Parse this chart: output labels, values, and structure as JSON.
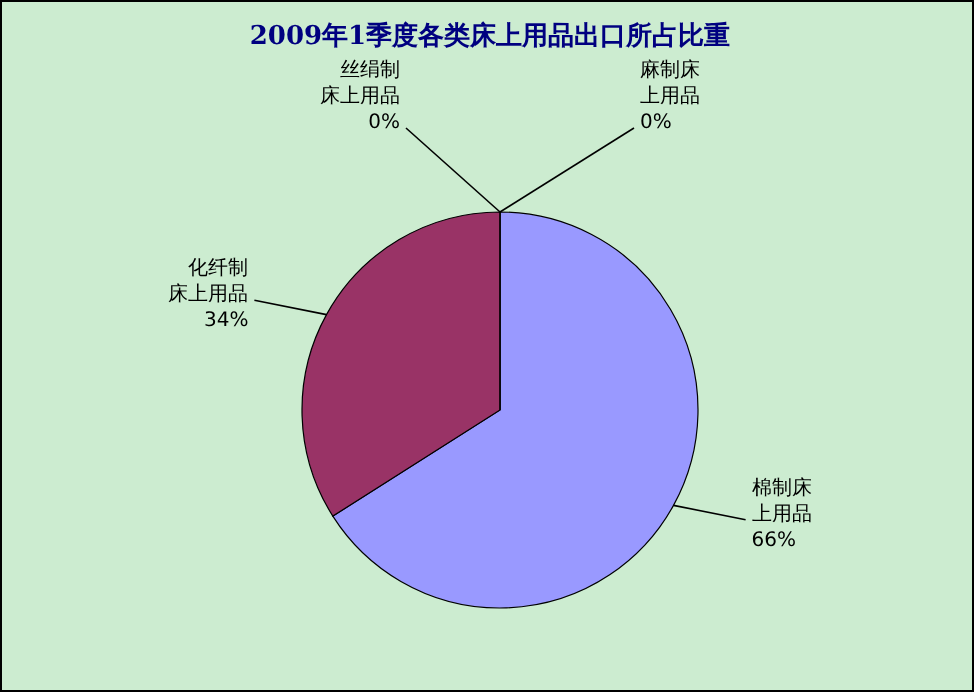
{
  "chart_data": {
    "type": "pie",
    "title": "2009年1季度各类床上用品出口所占比重",
    "categories": [
      "麻制床上用品",
      "棉制床上用品",
      "化纤制床上用品",
      "丝绢制床上用品"
    ],
    "values": [
      0,
      66,
      34,
      0
    ],
    "colors": [
      "#000000",
      "#9999ff",
      "#993366",
      "#ffffcc"
    ],
    "value_labels": [
      "0%",
      "66%",
      "34%",
      "0%"
    ]
  }
}
